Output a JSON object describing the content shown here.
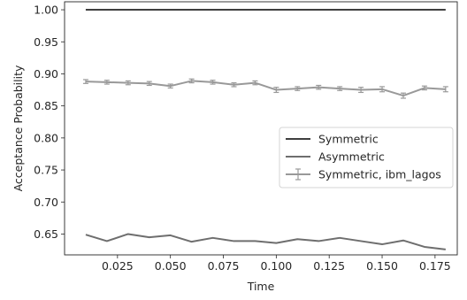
{
  "chart_data": {
    "type": "line",
    "title": "",
    "xlabel": "Time",
    "ylabel": "Acceptance Probability",
    "xlim": [
      0.0,
      0.1855
    ],
    "ylim": [
      0.6175,
      1.0125
    ],
    "xticks": [
      0.025,
      0.05,
      0.075,
      0.1,
      0.125,
      0.15,
      0.175
    ],
    "xtick_labels": [
      "0.025",
      "0.050",
      "0.075",
      "0.100",
      "0.125",
      "0.150",
      "0.175"
    ],
    "yticks": [
      0.65,
      0.7,
      0.75,
      0.8,
      0.85,
      0.9,
      0.95,
      1.0
    ],
    "ytick_labels": [
      "0.65",
      "0.70",
      "0.75",
      "0.80",
      "0.85",
      "0.90",
      "0.95",
      "1.00"
    ],
    "grid": false,
    "legend_position": "center-right",
    "x": [
      0.01,
      0.02,
      0.03,
      0.04,
      0.05,
      0.06,
      0.07,
      0.08,
      0.09,
      0.1,
      0.11,
      0.12,
      0.13,
      0.14,
      0.15,
      0.16,
      0.17,
      0.18
    ],
    "series": [
      {
        "name": "Symmetric",
        "color": "#3f3f3f",
        "error_bars": false,
        "values": [
          1.0,
          1.0,
          1.0,
          1.0,
          1.0,
          1.0,
          1.0,
          1.0,
          1.0,
          1.0,
          1.0,
          1.0,
          1.0,
          1.0,
          1.0,
          1.0,
          1.0,
          1.0
        ]
      },
      {
        "name": "Asymmetric",
        "color": "#6e6e6e",
        "error_bars": false,
        "values": [
          0.649,
          0.639,
          0.65,
          0.645,
          0.648,
          0.638,
          0.644,
          0.639,
          0.639,
          0.636,
          0.642,
          0.639,
          0.644,
          0.639,
          0.634,
          0.64,
          0.63,
          0.626
        ]
      },
      {
        "name": "Symmetric, ibm_lagos",
        "color": "#999999",
        "error_bars": true,
        "values": [
          0.888,
          0.887,
          0.886,
          0.885,
          0.881,
          0.889,
          0.887,
          0.883,
          0.886,
          0.875,
          0.877,
          0.879,
          0.877,
          0.875,
          0.876,
          0.866,
          0.878,
          0.876
        ],
        "errors": [
          0.003,
          0.003,
          0.003,
          0.003,
          0.003,
          0.003,
          0.003,
          0.003,
          0.003,
          0.004,
          0.003,
          0.003,
          0.003,
          0.004,
          0.004,
          0.004,
          0.003,
          0.004
        ]
      }
    ]
  }
}
